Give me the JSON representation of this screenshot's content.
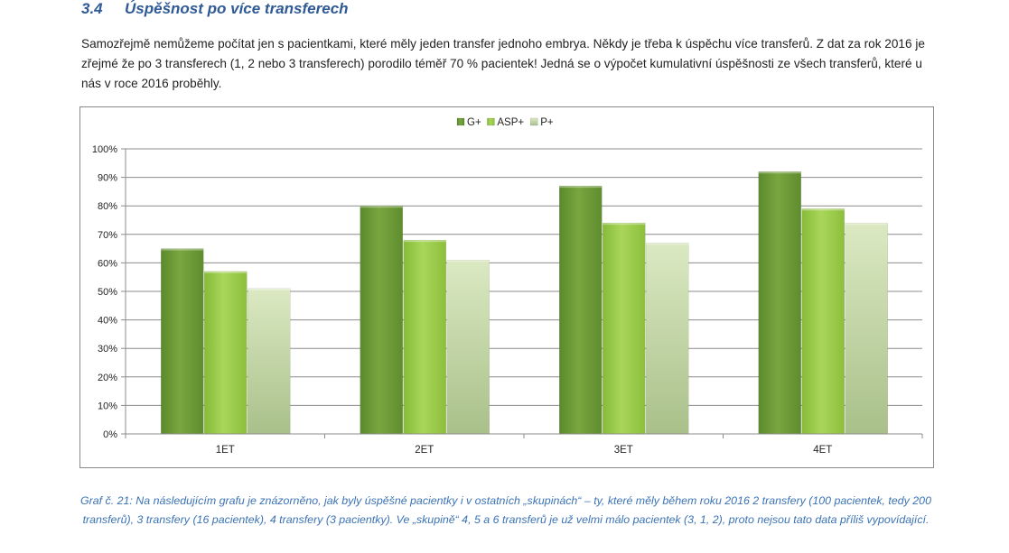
{
  "section": {
    "number": "3.4",
    "title": "Úspěšnost po více transferech"
  },
  "paragraph": "Samozřejmě nemůžeme počítat jen s pacientkami, které měly jeden transfer jednoho embrya.  Někdy je třeba k úspěchu více transferů. Z dat za rok 2016 je zřejmé že po 3 transferech (1, 2 nebo 3 transferech) porodilo téměř 70 % pacientek! Jedná se o výpočet kumulativní úspěšnosti ze všech transferů, které u nás v roce 2016 proběhly.",
  "chart_data": {
    "type": "bar",
    "categories": [
      "1ET",
      "2ET",
      "3ET",
      "4ET"
    ],
    "series": [
      {
        "name": "G+",
        "values": [
          65,
          80,
          87,
          92
        ],
        "color": "#6e9a38"
      },
      {
        "name": "ASP+",
        "values": [
          57,
          68,
          74,
          79
        ],
        "color": "#9acb48"
      },
      {
        "name": "P+",
        "values": [
          51,
          61,
          67,
          74
        ],
        "color": "#c9dea4"
      }
    ],
    "ylim": [
      0,
      100
    ],
    "yticks": [
      "0%",
      "10%",
      "20%",
      "30%",
      "40%",
      "50%",
      "60%",
      "70%",
      "80%",
      "90%",
      "100%"
    ],
    "grid": true,
    "legend_position": "top-center"
  },
  "caption": "Graf č. 21: Na následujícím grafu je znázorněno, jak byly úspěšné pacientky i v ostatních „skupinách“ – ty, které měly během roku 2016 2 transfery (100 pacientek, tedy 200 transferů), 3 transfery (16 pacientek), 4 transfery (3 pacientky). Ve „skupině“ 4, 5 a 6 transferů je už velmi málo pacientek (3, 1, 2), proto nejsou tato data příliš vypovídající."
}
